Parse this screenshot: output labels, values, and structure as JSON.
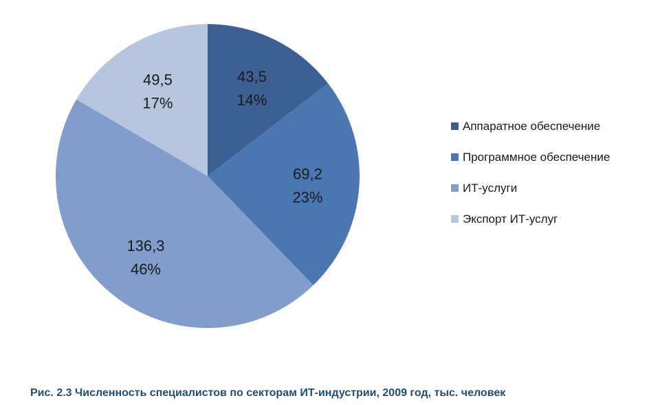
{
  "caption": "Рис. 2.3 Численность специалистов по секторам ИТ-индустрии, 2009 год, тыс. человек",
  "chart_data": {
    "type": "pie",
    "title": "",
    "legend_position": "right",
    "slices": [
      {
        "name": "Аппаратное обеспечение",
        "value": 43.5,
        "value_label": "43,5",
        "percent_label": "14%",
        "color": "#3d6092"
      },
      {
        "name": "Программное обеспечение",
        "value": 69.2,
        "value_label": "69,2",
        "percent_label": "23%",
        "color": "#4a77b2"
      },
      {
        "name": "ИТ-услуги",
        "value": 136.3,
        "value_label": "136,3",
        "percent_label": "46%",
        "color": "#809dcb"
      },
      {
        "name": "Экспорт ИТ-услуг",
        "value": 49.5,
        "value_label": "49,5",
        "percent_label": "17%",
        "color": "#b8c5df"
      }
    ]
  }
}
